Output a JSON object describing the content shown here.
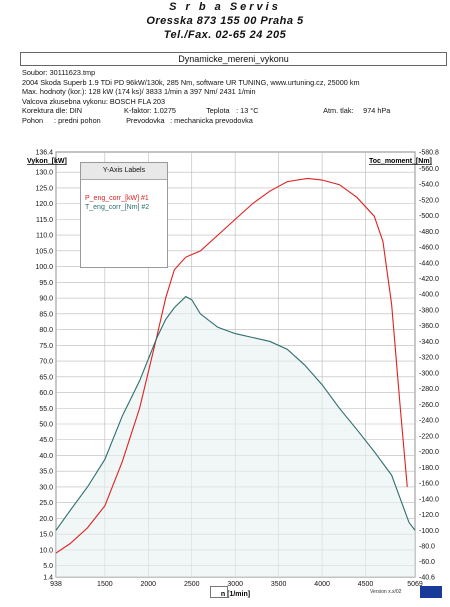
{
  "header": {
    "line1": "S r b a    Servis",
    "line2": "Oresska 873     155 00 Praha 5",
    "line3": "Tel./Fax. 02-65 24 205"
  },
  "subtitle": "Dynamicke_mereni_vykonu",
  "info": {
    "soubor": "Soubor: 30111623.tmp",
    "car": "2004 Skoda Superb 1.9 TDi PD 96kW/130k, 285 Nm, software UR TUNING, www.urtuning.cz, 25000 km",
    "max": "Max. hodnoty (kor.):  128 kW (174 ks)/ 3833 1/min  a   397 Nm/ 2431 1/min",
    "valcova": "Valcova zkusebna vykonu: BOSCH FLA 203",
    "korekce": "Korektura dle: DIN",
    "kfaktor": "K-faktor: 1.0275",
    "teplota_label": "Teplota",
    "teplota_value": ":  13 °C",
    "tlak_label": "Atm. tlak:",
    "tlak_value": "974 hPa",
    "pohon_label": "Pohon",
    "pohon_value": ":  predni pohon",
    "prevodovka_label": "Prevodovka",
    "prevodovka_value": ":  mechanicka prevodovka"
  },
  "legend": {
    "title": "Y-Axis Labels",
    "items": [
      "P_eng_corr_[kW] #1",
      "T_eng_corr_[Nm] #2"
    ]
  },
  "footer": {
    "version": "Version x.x/02"
  },
  "chart_data": {
    "type": "line",
    "xlabel": "n  [1/min]",
    "ylabel_left": "Vykon_[kW]",
    "ylabel_right": "Toc_moment_[Nm]",
    "xlim": [
      938,
      5069
    ],
    "ylim_left": [
      1.4,
      136.4
    ],
    "ylim_right": [
      -40.6,
      580.8
    ],
    "x_ticks": [
      938,
      1500,
      2000,
      2500,
      3000,
      3500,
      4000,
      4500,
      5069
    ],
    "y_left_ticks": [
      1.4,
      5.0,
      10.0,
      15.0,
      20.0,
      25.0,
      30.0,
      35.0,
      40.0,
      45.0,
      50.0,
      55.0,
      60.0,
      65.0,
      70.0,
      75.0,
      80.0,
      85.0,
      90.0,
      95.0,
      100.0,
      105.0,
      110.0,
      115.0,
      120.0,
      125.0,
      130.0,
      136.4
    ],
    "y_right_ticks": [
      -40.6,
      -60.0,
      -80.0,
      -100.0,
      -120.0,
      -140.0,
      -160.0,
      -180.0,
      -200.0,
      -220.0,
      -240.0,
      -260.0,
      -280.0,
      -300.0,
      -320.0,
      -340.0,
      -360.0,
      -380.0,
      -400.0,
      -420.0,
      -440.0,
      -460.0,
      -480.0,
      -500.0,
      -520.0,
      -540.0,
      -560.0,
      -580.8
    ],
    "grid": true,
    "series": [
      {
        "name": "P_eng_corr_[kW] #1",
        "color": "#e02020",
        "axis": "left",
        "x": [
          938,
          1100,
          1300,
          1500,
          1700,
          1900,
          2100,
          2200,
          2300,
          2431,
          2600,
          2800,
          3000,
          3200,
          3400,
          3600,
          3833,
          4000,
          4200,
          4400,
          4600,
          4700,
          4800,
          4900,
          4980
        ],
        "values": [
          9,
          12,
          17,
          24,
          38,
          55,
          78,
          90,
          99,
          103,
          105,
          110,
          115,
          120,
          124,
          127,
          128,
          127.5,
          126,
          122,
          116,
          108,
          88,
          55,
          30
        ]
      },
      {
        "name": "T_eng_corr_[Nm] #2",
        "color": "#2c6e6e",
        "axis": "right",
        "x": [
          938,
          1100,
          1300,
          1500,
          1700,
          1900,
          2100,
          2200,
          2300,
          2431,
          2500,
          2600,
          2800,
          3000,
          3200,
          3400,
          3600,
          3800,
          4000,
          4200,
          4400,
          4600,
          4800,
          4900,
          5000,
          5069
        ],
        "values": [
          -100,
          -125,
          -155,
          -190,
          -245,
          -290,
          -345,
          -368,
          -383,
          -397,
          -393,
          -375,
          -358,
          -350,
          -345,
          -340,
          -330,
          -310,
          -285,
          -255,
          -228,
          -200,
          -170,
          -140,
          -110,
          -100
        ]
      }
    ]
  }
}
